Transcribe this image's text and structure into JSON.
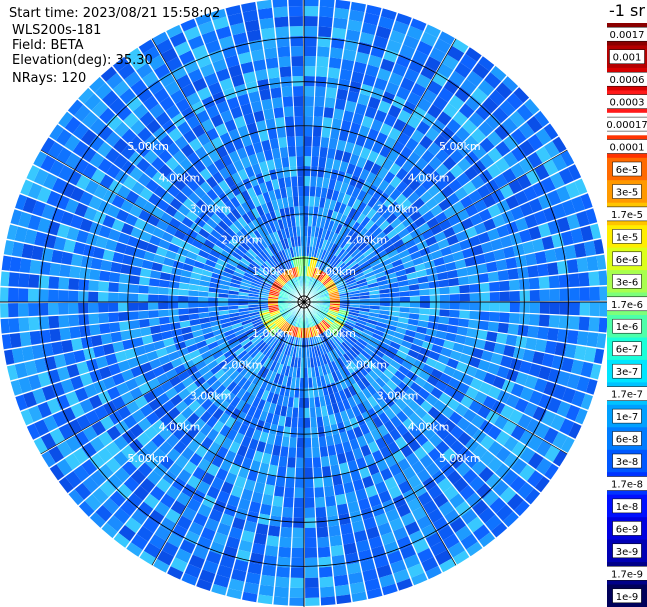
{
  "header": {
    "start_time": "Start time: 2023/08/21 15:58:02",
    "instrument": "WLS200s-181",
    "field": "Field: BETA",
    "elevation": "Elevation(deg): 35.30",
    "nrays": "NRays: 120"
  },
  "chart_data": {
    "type": "heatmap",
    "projection": "polar-ppi",
    "field": "BETA",
    "units": "-1 sr",
    "n_rays": 120,
    "range_rings_km": [
      1,
      2,
      3,
      4,
      5
    ],
    "ring_labels": [
      "1.00km",
      "2.00km",
      "3.00km",
      "4.00km",
      "5.00km"
    ],
    "max_range_km": 6.9,
    "colorbar": {
      "label": "-1 sr",
      "levels": [
        {
          "label": "0.0017",
          "color": "#8b0000"
        },
        {
          "label": "0.001",
          "color": "#b40000"
        },
        {
          "label": "0.0006",
          "color": "#d80000"
        },
        {
          "label": "0.0003",
          "color": "#ff1a1a"
        },
        {
          "label": "0.00017",
          "color": "#ffffff"
        },
        {
          "label": "0.0001",
          "color": "#ff3300"
        },
        {
          "label": "6e-5",
          "color": "#ff6a00"
        },
        {
          "label": "3e-5",
          "color": "#ff9900"
        },
        {
          "label": "1.7e-5",
          "color": "#ffc400"
        },
        {
          "label": "1e-5",
          "color": "#ffee00"
        },
        {
          "label": "6e-6",
          "color": "#dcff1a"
        },
        {
          "label": "3e-6",
          "color": "#a8ff4f"
        },
        {
          "label": "1.7e-6",
          "color": "#7dff7a"
        },
        {
          "label": "1e-6",
          "color": "#4dffaa"
        },
        {
          "label": "6e-7",
          "color": "#1affd9"
        },
        {
          "label": "3e-7",
          "color": "#00e5ff"
        },
        {
          "label": "1.7e-7",
          "color": "#00c3ff"
        },
        {
          "label": "1e-7",
          "color": "#00a0ff"
        },
        {
          "label": "6e-8",
          "color": "#007cff"
        },
        {
          "label": "3e-8",
          "color": "#0058ff"
        },
        {
          "label": "1.7e-8",
          "color": "#0034ff"
        },
        {
          "label": "1e-8",
          "color": "#0010ff"
        },
        {
          "label": "6e-9",
          "color": "#0000df"
        },
        {
          "label": "3e-9",
          "color": "#0000b4"
        },
        {
          "label": "1.7e-9",
          "color": "#000088"
        },
        {
          "label": "1e-9",
          "color": "#00005a"
        }
      ]
    }
  }
}
